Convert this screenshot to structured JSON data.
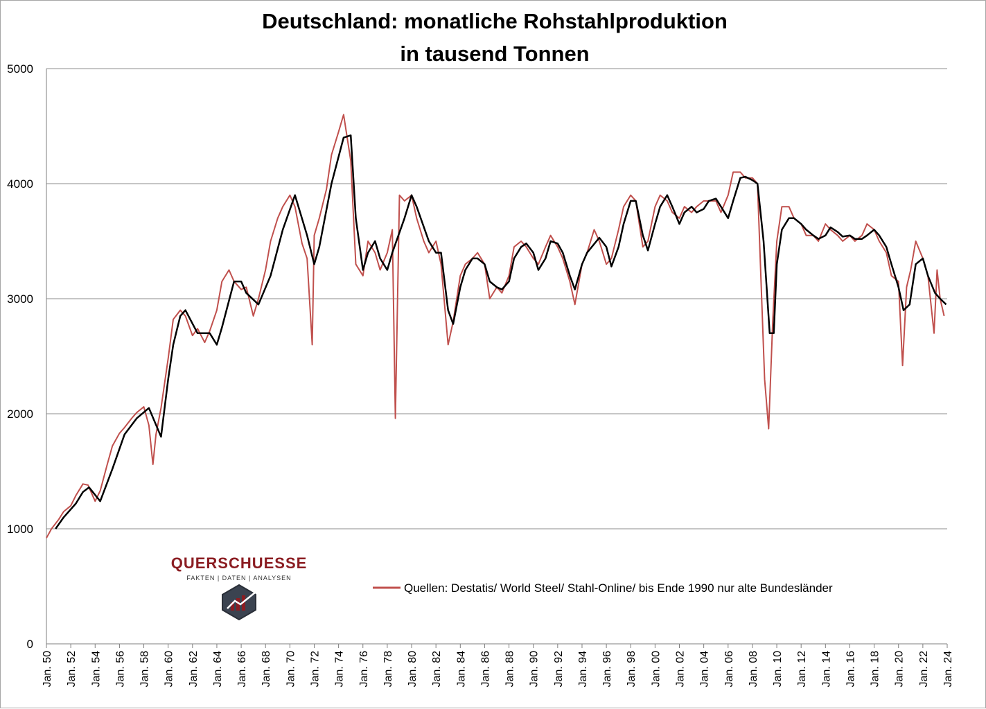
{
  "chart_data": {
    "type": "line",
    "title": "Deutschland: monatliche Rohstahlproduktion",
    "subtitle": "in tausend Tonnen",
    "ylim": [
      0,
      5000
    ],
    "yticks": [
      0,
      1000,
      2000,
      3000,
      4000,
      5000
    ],
    "grid": true,
    "xlim": [
      "1950-01",
      "2024-01"
    ],
    "xtick_labels": [
      "Jan. 50",
      "Jan. 52",
      "Jan. 54",
      "Jan. 56",
      "Jan. 58",
      "Jan. 60",
      "Jan. 62",
      "Jan. 64",
      "Jan. 66",
      "Jan. 68",
      "Jan. 70",
      "Jan. 72",
      "Jan. 74",
      "Jan. 76",
      "Jan. 78",
      "Jan. 80",
      "Jan. 82",
      "Jan. 84",
      "Jan. 86",
      "Jan. 88",
      "Jan. 90",
      "Jan. 92",
      "Jan. 94",
      "Jan. 96",
      "Jan. 98",
      "Jan. 00",
      "Jan. 02",
      "Jan. 04",
      "Jan. 06",
      "Jan. 08",
      "Jan. 10",
      "Jan. 12",
      "Jan. 14",
      "Jan. 16",
      "Jan. 18",
      "Jan. 20",
      "Jan. 22",
      "Jan. 24"
    ],
    "legend": {
      "placement": "bottom-center",
      "entry": "Quellen: Destatis/ World Steel/ Stahl-Online/ bis Ende 1990 nur alte Bundesländer"
    },
    "series": [
      {
        "role": "monthly",
        "color": "#c0504d",
        "points": [
          [
            "1950-01",
            920
          ],
          [
            "1950-06",
            1000
          ],
          [
            "1951-01",
            1080
          ],
          [
            "1951-06",
            1150
          ],
          [
            "1952-01",
            1200
          ],
          [
            "1952-06",
            1290
          ],
          [
            "1953-01",
            1390
          ],
          [
            "1953-06",
            1380
          ],
          [
            "1954-01",
            1240
          ],
          [
            "1954-06",
            1330
          ],
          [
            "1955-01",
            1560
          ],
          [
            "1955-06",
            1720
          ],
          [
            "1956-01",
            1830
          ],
          [
            "1956-06",
            1880
          ],
          [
            "1957-01",
            1960
          ],
          [
            "1957-06",
            2010
          ],
          [
            "1958-01",
            2060
          ],
          [
            "1958-06",
            1900
          ],
          [
            "1958-10",
            1560
          ],
          [
            "1959-01",
            1820
          ],
          [
            "1959-06",
            2050
          ],
          [
            "1960-01",
            2480
          ],
          [
            "1960-06",
            2820
          ],
          [
            "1961-01",
            2900
          ],
          [
            "1961-06",
            2850
          ],
          [
            "1962-01",
            2680
          ],
          [
            "1962-06",
            2740
          ],
          [
            "1963-01",
            2620
          ],
          [
            "1963-06",
            2720
          ],
          [
            "1964-01",
            2900
          ],
          [
            "1964-06",
            3150
          ],
          [
            "1965-01",
            3250
          ],
          [
            "1965-06",
            3150
          ],
          [
            "1966-01",
            3080
          ],
          [
            "1966-06",
            3100
          ],
          [
            "1967-01",
            2850
          ],
          [
            "1967-06",
            3000
          ],
          [
            "1968-01",
            3250
          ],
          [
            "1968-06",
            3500
          ],
          [
            "1969-01",
            3700
          ],
          [
            "1969-06",
            3800
          ],
          [
            "1970-01",
            3900
          ],
          [
            "1970-06",
            3800
          ],
          [
            "1971-01",
            3480
          ],
          [
            "1971-06",
            3350
          ],
          [
            "1971-11",
            2600
          ],
          [
            "1972-01",
            3550
          ],
          [
            "1972-06",
            3700
          ],
          [
            "1973-01",
            3950
          ],
          [
            "1973-06",
            4250
          ],
          [
            "1974-01",
            4450
          ],
          [
            "1974-06",
            4600
          ],
          [
            "1975-01",
            4200
          ],
          [
            "1975-06",
            3300
          ],
          [
            "1976-01",
            3200
          ],
          [
            "1976-06",
            3500
          ],
          [
            "1977-01",
            3400
          ],
          [
            "1977-06",
            3250
          ],
          [
            "1978-01",
            3400
          ],
          [
            "1978-06",
            3600
          ],
          [
            "1978-09",
            1960
          ],
          [
            "1979-01",
            3900
          ],
          [
            "1979-06",
            3850
          ],
          [
            "1980-01",
            3900
          ],
          [
            "1980-06",
            3700
          ],
          [
            "1981-01",
            3500
          ],
          [
            "1981-06",
            3400
          ],
          [
            "1982-01",
            3500
          ],
          [
            "1982-06",
            3300
          ],
          [
            "1983-01",
            2600
          ],
          [
            "1983-06",
            2800
          ],
          [
            "1984-01",
            3200
          ],
          [
            "1984-06",
            3300
          ],
          [
            "1985-01",
            3350
          ],
          [
            "1985-06",
            3400
          ],
          [
            "1986-01",
            3300
          ],
          [
            "1986-06",
            3000
          ],
          [
            "1987-01",
            3100
          ],
          [
            "1987-06",
            3050
          ],
          [
            "1988-01",
            3200
          ],
          [
            "1988-06",
            3450
          ],
          [
            "1989-01",
            3500
          ],
          [
            "1989-06",
            3450
          ],
          [
            "1990-01",
            3350
          ],
          [
            "1990-06",
            3300
          ],
          [
            "1991-01",
            3450
          ],
          [
            "1991-06",
            3550
          ],
          [
            "1992-01",
            3450
          ],
          [
            "1992-06",
            3350
          ],
          [
            "1993-01",
            3150
          ],
          [
            "1993-06",
            2950
          ],
          [
            "1994-01",
            3300
          ],
          [
            "1994-06",
            3400
          ],
          [
            "1995-01",
            3600
          ],
          [
            "1995-06",
            3500
          ],
          [
            "1996-01",
            3300
          ],
          [
            "1996-06",
            3350
          ],
          [
            "1997-01",
            3600
          ],
          [
            "1997-06",
            3800
          ],
          [
            "1998-01",
            3900
          ],
          [
            "1998-06",
            3850
          ],
          [
            "1999-01",
            3450
          ],
          [
            "1999-06",
            3500
          ],
          [
            "2000-01",
            3800
          ],
          [
            "2000-06",
            3900
          ],
          [
            "2001-01",
            3850
          ],
          [
            "2001-06",
            3750
          ],
          [
            "2002-01",
            3700
          ],
          [
            "2002-06",
            3800
          ],
          [
            "2003-01",
            3750
          ],
          [
            "2003-06",
            3800
          ],
          [
            "2004-01",
            3850
          ],
          [
            "2004-06",
            3850
          ],
          [
            "2005-01",
            3850
          ],
          [
            "2005-06",
            3750
          ],
          [
            "2006-01",
            3900
          ],
          [
            "2006-06",
            4100
          ],
          [
            "2007-01",
            4100
          ],
          [
            "2007-06",
            4050
          ],
          [
            "2008-01",
            4050
          ],
          [
            "2008-06",
            4000
          ],
          [
            "2009-01",
            2300
          ],
          [
            "2009-05",
            1870
          ],
          [
            "2009-09",
            2800
          ],
          [
            "2010-01",
            3500
          ],
          [
            "2010-06",
            3800
          ],
          [
            "2011-01",
            3800
          ],
          [
            "2011-06",
            3700
          ],
          [
            "2012-01",
            3650
          ],
          [
            "2012-06",
            3550
          ],
          [
            "2013-01",
            3550
          ],
          [
            "2013-06",
            3500
          ],
          [
            "2014-01",
            3650
          ],
          [
            "2014-06",
            3600
          ],
          [
            "2015-01",
            3550
          ],
          [
            "2015-06",
            3500
          ],
          [
            "2016-01",
            3550
          ],
          [
            "2016-06",
            3500
          ],
          [
            "2017-01",
            3550
          ],
          [
            "2017-06",
            3650
          ],
          [
            "2018-01",
            3600
          ],
          [
            "2018-06",
            3500
          ],
          [
            "2019-01",
            3400
          ],
          [
            "2019-06",
            3200
          ],
          [
            "2020-01",
            3150
          ],
          [
            "2020-05",
            2420
          ],
          [
            "2020-09",
            3100
          ],
          [
            "2021-01",
            3250
          ],
          [
            "2021-06",
            3500
          ],
          [
            "2022-01",
            3350
          ],
          [
            "2022-06",
            3200
          ],
          [
            "2022-12",
            2700
          ],
          [
            "2023-03",
            3250
          ],
          [
            "2023-06",
            3000
          ],
          [
            "2023-10",
            2850
          ]
        ]
      },
      {
        "role": "trend",
        "color": "#000000",
        "points": [
          [
            "1950-10",
            1000
          ],
          [
            "1951-06",
            1100
          ],
          [
            "1952-06",
            1220
          ],
          [
            "1953-01",
            1320
          ],
          [
            "1953-07",
            1360
          ],
          [
            "1954-06",
            1240
          ],
          [
            "1955-06",
            1520
          ],
          [
            "1956-06",
            1820
          ],
          [
            "1957-06",
            1960
          ],
          [
            "1958-06",
            2050
          ],
          [
            "1959-06",
            1800
          ],
          [
            "1960-01",
            2300
          ],
          [
            "1960-06",
            2600
          ],
          [
            "1961-01",
            2850
          ],
          [
            "1961-06",
            2900
          ],
          [
            "1962-06",
            2700
          ],
          [
            "1963-06",
            2700
          ],
          [
            "1964-01",
            2600
          ],
          [
            "1964-06",
            2750
          ],
          [
            "1965-06",
            3150
          ],
          [
            "1966-01",
            3150
          ],
          [
            "1966-06",
            3050
          ],
          [
            "1967-06",
            2950
          ],
          [
            "1968-06",
            3200
          ],
          [
            "1969-06",
            3600
          ],
          [
            "1970-06",
            3900
          ],
          [
            "1971-06",
            3550
          ],
          [
            "1972-01",
            3300
          ],
          [
            "1972-06",
            3450
          ],
          [
            "1973-06",
            4000
          ],
          [
            "1974-06",
            4400
          ],
          [
            "1975-01",
            4420
          ],
          [
            "1975-06",
            3700
          ],
          [
            "1976-01",
            3250
          ],
          [
            "1976-06",
            3400
          ],
          [
            "1977-01",
            3500
          ],
          [
            "1977-06",
            3350
          ],
          [
            "1978-01",
            3250
          ],
          [
            "1978-06",
            3400
          ],
          [
            "1979-06",
            3700
          ],
          [
            "1980-01",
            3900
          ],
          [
            "1980-06",
            3800
          ],
          [
            "1981-06",
            3500
          ],
          [
            "1982-01",
            3400
          ],
          [
            "1982-06",
            3400
          ],
          [
            "1983-01",
            2900
          ],
          [
            "1983-06",
            2780
          ],
          [
            "1984-01",
            3100
          ],
          [
            "1984-06",
            3250
          ],
          [
            "1985-01",
            3350
          ],
          [
            "1985-06",
            3350
          ],
          [
            "1986-01",
            3300
          ],
          [
            "1986-06",
            3150
          ],
          [
            "1987-01",
            3100
          ],
          [
            "1987-06",
            3080
          ],
          [
            "1988-01",
            3150
          ],
          [
            "1988-06",
            3350
          ],
          [
            "1989-01",
            3450
          ],
          [
            "1989-06",
            3480
          ],
          [
            "1990-01",
            3400
          ],
          [
            "1990-06",
            3250
          ],
          [
            "1991-01",
            3350
          ],
          [
            "1991-06",
            3500
          ],
          [
            "1992-01",
            3480
          ],
          [
            "1992-06",
            3400
          ],
          [
            "1993-01",
            3200
          ],
          [
            "1993-06",
            3080
          ],
          [
            "1994-01",
            3300
          ],
          [
            "1994-06",
            3400
          ],
          [
            "1995-06",
            3530
          ],
          [
            "1996-01",
            3450
          ],
          [
            "1996-06",
            3280
          ],
          [
            "1997-01",
            3450
          ],
          [
            "1997-06",
            3650
          ],
          [
            "1998-01",
            3850
          ],
          [
            "1998-06",
            3850
          ],
          [
            "1999-01",
            3550
          ],
          [
            "1999-06",
            3420
          ],
          [
            "2000-01",
            3650
          ],
          [
            "2000-06",
            3800
          ],
          [
            "2001-01",
            3900
          ],
          [
            "2001-06",
            3800
          ],
          [
            "2002-01",
            3650
          ],
          [
            "2002-06",
            3750
          ],
          [
            "2003-01",
            3800
          ],
          [
            "2003-06",
            3750
          ],
          [
            "2004-01",
            3780
          ],
          [
            "2004-06",
            3850
          ],
          [
            "2005-01",
            3870
          ],
          [
            "2005-06",
            3800
          ],
          [
            "2006-01",
            3700
          ],
          [
            "2006-06",
            3850
          ],
          [
            "2007-01",
            4050
          ],
          [
            "2007-06",
            4060
          ],
          [
            "2008-01",
            4030
          ],
          [
            "2008-06",
            4000
          ],
          [
            "2008-12",
            3500
          ],
          [
            "2009-06",
            2700
          ],
          [
            "2009-10",
            2700
          ],
          [
            "2010-01",
            3300
          ],
          [
            "2010-06",
            3600
          ],
          [
            "2011-01",
            3700
          ],
          [
            "2011-06",
            3700
          ],
          [
            "2012-01",
            3650
          ],
          [
            "2012-06",
            3600
          ],
          [
            "2013-01",
            3550
          ],
          [
            "2013-06",
            3520
          ],
          [
            "2014-01",
            3550
          ],
          [
            "2014-06",
            3620
          ],
          [
            "2015-01",
            3580
          ],
          [
            "2015-06",
            3540
          ],
          [
            "2016-01",
            3550
          ],
          [
            "2016-06",
            3520
          ],
          [
            "2017-01",
            3520
          ],
          [
            "2017-06",
            3550
          ],
          [
            "2018-01",
            3600
          ],
          [
            "2018-06",
            3550
          ],
          [
            "2019-01",
            3450
          ],
          [
            "2019-06",
            3300
          ],
          [
            "2020-01",
            3100
          ],
          [
            "2020-06",
            2900
          ],
          [
            "2020-12",
            2950
          ],
          [
            "2021-06",
            3300
          ],
          [
            "2022-01",
            3350
          ],
          [
            "2022-06",
            3200
          ],
          [
            "2023-01",
            3050
          ],
          [
            "2023-06",
            3000
          ],
          [
            "2023-12",
            2950
          ]
        ]
      }
    ]
  },
  "logo": {
    "name": "QUERSCHUESSE",
    "tagline": "FAKTEN | DATEN | ANALYSEN",
    "color": "#8b1d22"
  }
}
